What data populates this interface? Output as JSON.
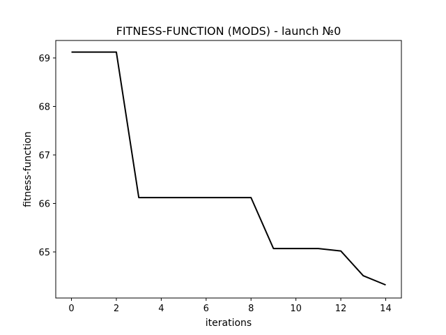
{
  "chart_data": {
    "type": "line",
    "title": "FITNESS-FUNCTION (MODS) - launch №0",
    "xlabel": "iterations",
    "ylabel": "fitness-function",
    "xlim": [
      -0.7,
      14.7
    ],
    "ylim": [
      64.05,
      69.36
    ],
    "xticks": [
      0,
      2,
      4,
      6,
      8,
      10,
      12,
      14
    ],
    "yticks": [
      65,
      66,
      67,
      68,
      69
    ],
    "grid": false,
    "legend": "none",
    "series": [
      {
        "color": "#000000",
        "x": [
          0,
          1,
          2,
          3,
          4,
          5,
          6,
          7,
          8,
          9,
          10,
          11,
          12,
          13,
          14
        ],
        "y": [
          69.12,
          69.12,
          69.12,
          66.12,
          66.12,
          66.12,
          66.12,
          66.12,
          66.12,
          65.07,
          65.07,
          65.07,
          65.02,
          64.51,
          64.32
        ]
      }
    ]
  }
}
